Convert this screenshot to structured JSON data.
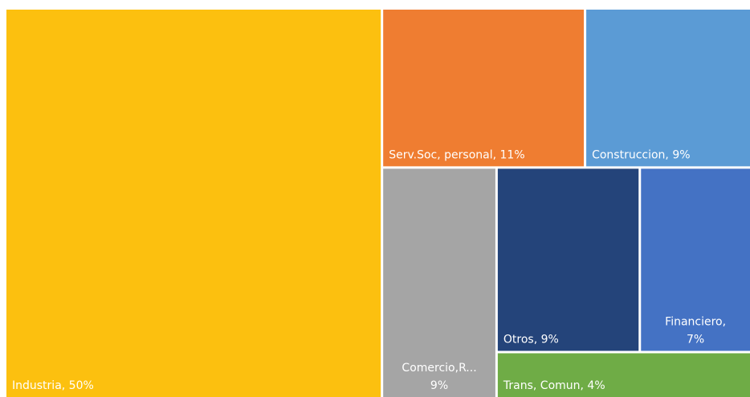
{
  "chart_data": {
    "type": "treemap",
    "values": [
      50,
      11,
      9,
      9,
      9,
      7,
      4
    ],
    "value_labels": [
      [
        "Industria, 50%"
      ],
      [
        "Serv.Soc, personal, 11%"
      ],
      [
        "Construccion, 9%"
      ],
      [
        "Comercio,R...",
        "9%"
      ],
      [
        "Otros, 9%"
      ],
      [
        "Financiero,",
        "7%"
      ],
      [
        "Trans, Comun, 4%"
      ]
    ],
    "colors": [
      "#fcc00f",
      "#ef7d31",
      "#5b9bd5",
      "#a5a5a5",
      "#24447a",
      "#4472c4",
      "#6fac46"
    ]
  }
}
